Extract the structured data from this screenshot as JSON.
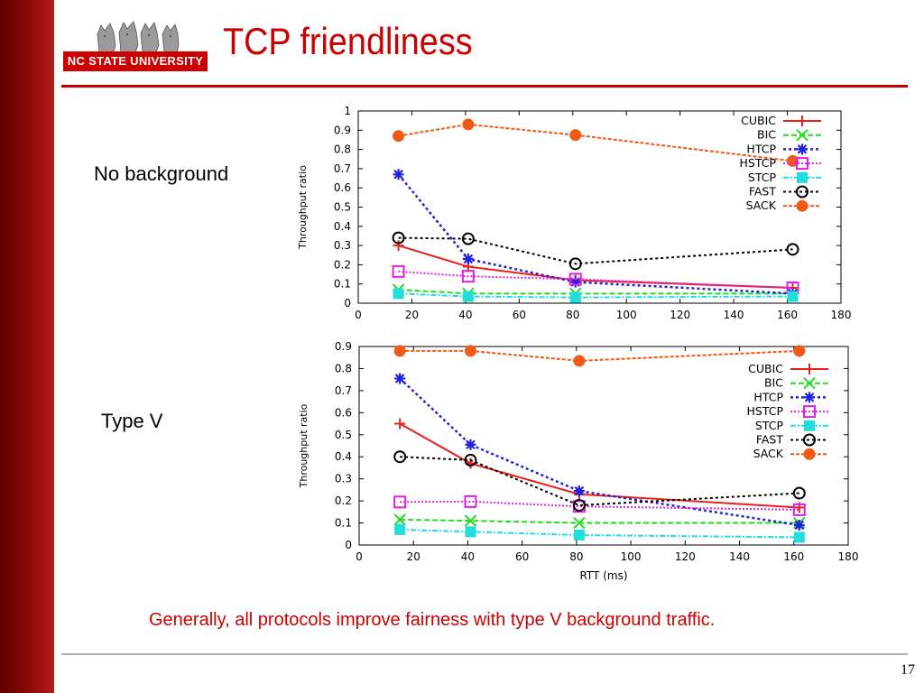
{
  "slide": {
    "title": "TCP friendliness",
    "logo_text": "NC STATE UNIVERSITY",
    "label_top": "No background",
    "label_bottom": "Type V",
    "footnote": "Generally, all protocols improve fairness with type V background traffic.",
    "page_number": "17"
  },
  "colors": {
    "title": "#cc0000",
    "sidebar": "#8d0a0a",
    "CUBIC": "#e8201b",
    "BIC": "#22dd22",
    "HTCP": "#2222dd",
    "HSTCP": "#e020e0",
    "STCP": "#22dddd",
    "FAST": "#000000",
    "SACK": "#f05a14"
  },
  "chart_data": [
    {
      "type": "line",
      "xlim": [
        0,
        180
      ],
      "ylim": [
        0,
        1
      ],
      "xticks": [
        "0",
        "20",
        "40",
        "60",
        "80",
        "100",
        "120",
        "140",
        "160",
        "180"
      ],
      "yticks": [
        "0",
        "0.1",
        "0.2",
        "0.3",
        "0.4",
        "0.5",
        "0.6",
        "0.7",
        "0.8",
        "0.9",
        "1"
      ],
      "xlabel": "",
      "ylabel": "Throughput ratio",
      "legend_position": "top-right",
      "x": [
        15,
        41,
        81,
        162
      ],
      "series": [
        {
          "name": "CUBIC",
          "values": [
            0.3,
            0.19,
            0.12,
            0.08
          ]
        },
        {
          "name": "BIC",
          "values": [
            0.07,
            0.05,
            0.05,
            0.05
          ]
        },
        {
          "name": "HTCP",
          "values": [
            0.67,
            0.23,
            0.11,
            0.05
          ]
        },
        {
          "name": "HSTCP",
          "values": [
            0.165,
            0.14,
            0.125,
            0.08
          ]
        },
        {
          "name": "STCP",
          "values": [
            0.05,
            0.035,
            0.03,
            0.035
          ]
        },
        {
          "name": "FAST",
          "values": [
            0.34,
            0.335,
            0.205,
            0.28
          ]
        },
        {
          "name": "SACK",
          "values": [
            0.87,
            0.93,
            0.875,
            0.74
          ]
        }
      ]
    },
    {
      "type": "line",
      "xlim": [
        0,
        180
      ],
      "ylim": [
        0,
        0.9
      ],
      "xticks": [
        "0",
        "20",
        "40",
        "60",
        "80",
        "100",
        "120",
        "140",
        "160",
        "180"
      ],
      "yticks": [
        "0",
        "0.1",
        "0.2",
        "0.3",
        "0.4",
        "0.5",
        "0.6",
        "0.7",
        "0.8",
        "0.9"
      ],
      "xlabel": "RTT (ms)",
      "ylabel": "Throughput ratio",
      "legend_position": "top-right",
      "x": [
        15,
        41,
        81,
        162
      ],
      "series": [
        {
          "name": "CUBIC",
          "values": [
            0.55,
            0.37,
            0.23,
            0.17
          ]
        },
        {
          "name": "BIC",
          "values": [
            0.115,
            0.11,
            0.1,
            0.1
          ]
        },
        {
          "name": "HTCP",
          "values": [
            0.755,
            0.455,
            0.245,
            0.09
          ]
        },
        {
          "name": "HSTCP",
          "values": [
            0.195,
            0.197,
            0.175,
            0.16
          ]
        },
        {
          "name": "STCP",
          "values": [
            0.07,
            0.06,
            0.045,
            0.035
          ]
        },
        {
          "name": "FAST",
          "values": [
            0.4,
            0.385,
            0.18,
            0.235
          ]
        },
        {
          "name": "SACK",
          "values": [
            0.88,
            0.88,
            0.835,
            0.88
          ]
        }
      ]
    }
  ]
}
